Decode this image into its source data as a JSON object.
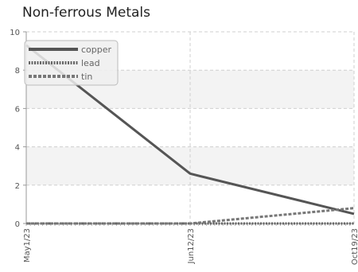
{
  "chart_data": {
    "type": "line",
    "title": "Non-ferrous Metals",
    "x": [
      "May1/23",
      "Jun12/23",
      "Oct19/23"
    ],
    "ylim": [
      0,
      10
    ],
    "yticks": [
      0,
      2,
      4,
      6,
      8,
      10
    ],
    "grid": true,
    "legend_position": "top-left",
    "series": [
      {
        "name": "copper",
        "values": [
          9.3,
          2.6,
          0.5
        ],
        "color": "#555555",
        "style": "solid"
      },
      {
        "name": "lead",
        "values": [
          0,
          0,
          0
        ],
        "color": "#666666",
        "style": "dotted"
      },
      {
        "name": "tin",
        "values": [
          0,
          0,
          0.8
        ],
        "color": "#777777",
        "style": "dashed"
      }
    ]
  }
}
